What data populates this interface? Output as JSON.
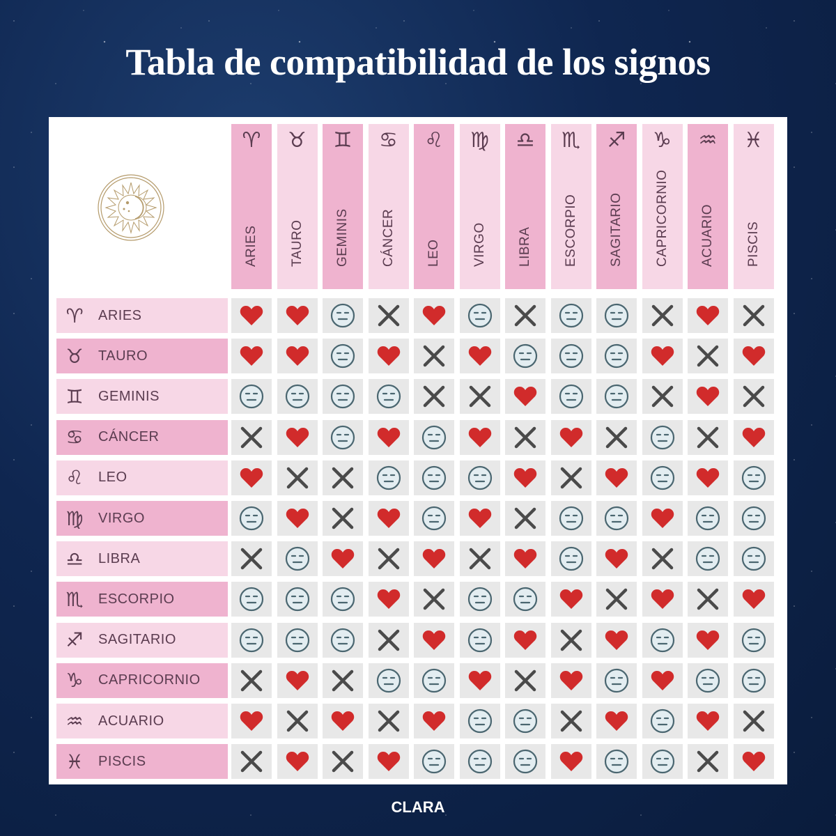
{
  "title": "Tabla de compatibilidad de los signos",
  "brand": "CLARA",
  "legend_icons": {
    "H": "heart-icon",
    "N": "neutral-face-icon",
    "X": "cross-icon"
  },
  "colors": {
    "heart": "#d12b2b",
    "cross": "#4a4a4a",
    "neutral": "#4a6670",
    "pink_dark": "#efb3cf",
    "pink_light": "#f7d7e6",
    "cell_bg": "#e8e8e8"
  },
  "signs": [
    {
      "name": "ARIES",
      "symbol": "♈"
    },
    {
      "name": "TAURO",
      "symbol": "♉"
    },
    {
      "name": "GEMINIS",
      "symbol": "♊"
    },
    {
      "name": "CÁNCER",
      "symbol": "♋"
    },
    {
      "name": "LEO",
      "symbol": "♌"
    },
    {
      "name": "VIRGO",
      "symbol": "♍"
    },
    {
      "name": "LIBRA",
      "symbol": "♎"
    },
    {
      "name": "ESCORPIO",
      "symbol": "♏"
    },
    {
      "name": "SAGITARIO",
      "symbol": "♐"
    },
    {
      "name": "CAPRICORNIO",
      "symbol": "♑"
    },
    {
      "name": "ACUARIO",
      "symbol": "♒"
    },
    {
      "name": "PISCIS",
      "symbol": "♓"
    }
  ],
  "chart_data": {
    "type": "table",
    "title": "Tabla de compatibilidad de los signos",
    "columns": [
      "ARIES",
      "TAURO",
      "GEMINIS",
      "CÁNCER",
      "LEO",
      "VIRGO",
      "LIBRA",
      "ESCORPIO",
      "SAGITARIO",
      "CAPRICORNIO",
      "ACUARIO",
      "PISCIS"
    ],
    "rows": [
      "ARIES",
      "TAURO",
      "GEMINIS",
      "CÁNCER",
      "LEO",
      "VIRGO",
      "LIBRA",
      "ESCORPIO",
      "SAGITARIO",
      "CAPRICORNIO",
      "ACUARIO",
      "PISCIS"
    ],
    "legend": {
      "H": "heart (compatible)",
      "N": "neutral face (neutral)",
      "X": "cross (incompatible)"
    },
    "matrix": [
      [
        "H",
        "H",
        "N",
        "X",
        "H",
        "N",
        "X",
        "N",
        "N",
        "X",
        "H",
        "X"
      ],
      [
        "H",
        "H",
        "N",
        "H",
        "X",
        "H",
        "N",
        "N",
        "N",
        "H",
        "X",
        "H"
      ],
      [
        "N",
        "N",
        "N",
        "N",
        "X",
        "X",
        "H",
        "N",
        "N",
        "X",
        "H",
        "X"
      ],
      [
        "X",
        "H",
        "N",
        "H",
        "N",
        "H",
        "X",
        "H",
        "X",
        "N",
        "X",
        "H"
      ],
      [
        "H",
        "X",
        "X",
        "N",
        "N",
        "N",
        "H",
        "X",
        "H",
        "N",
        "H",
        "N"
      ],
      [
        "N",
        "H",
        "X",
        "H",
        "N",
        "H",
        "X",
        "N",
        "N",
        "H",
        "N",
        "N"
      ],
      [
        "X",
        "N",
        "H",
        "X",
        "H",
        "X",
        "H",
        "N",
        "H",
        "X",
        "N",
        "N"
      ],
      [
        "N",
        "N",
        "N",
        "H",
        "X",
        "N",
        "N",
        "H",
        "X",
        "H",
        "X",
        "H"
      ],
      [
        "N",
        "N",
        "N",
        "X",
        "H",
        "N",
        "H",
        "X",
        "H",
        "N",
        "H",
        "N"
      ],
      [
        "X",
        "H",
        "X",
        "N",
        "N",
        "H",
        "X",
        "H",
        "N",
        "H",
        "N",
        "N"
      ],
      [
        "H",
        "X",
        "H",
        "X",
        "H",
        "N",
        "N",
        "X",
        "H",
        "N",
        "H",
        "X"
      ],
      [
        "X",
        "H",
        "X",
        "H",
        "N",
        "N",
        "N",
        "H",
        "N",
        "N",
        "X",
        "H"
      ]
    ]
  }
}
